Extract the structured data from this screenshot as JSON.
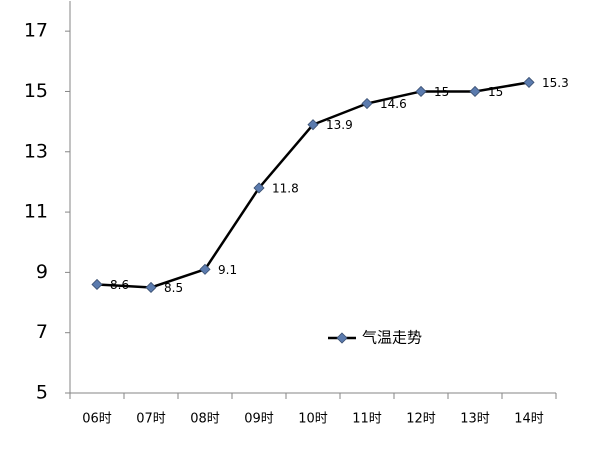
{
  "chart_data": {
    "type": "line",
    "categories": [
      "06时",
      "07时",
      "08时",
      "09时",
      "10时",
      "11时",
      "12时",
      "13时",
      "14时"
    ],
    "series": [
      {
        "name": "气温走势",
        "color": "#000000",
        "marker_color": "#5b7bae",
        "values": [
          8.6,
          8.5,
          9.1,
          11.8,
          13.9,
          14.6,
          15,
          15,
          15.3
        ]
      }
    ],
    "ylim": [
      5,
      18
    ],
    "yticks": [
      5,
      7,
      9,
      11,
      13,
      15,
      17
    ],
    "grid": false,
    "legend": "lower center",
    "data_labels": true
  }
}
